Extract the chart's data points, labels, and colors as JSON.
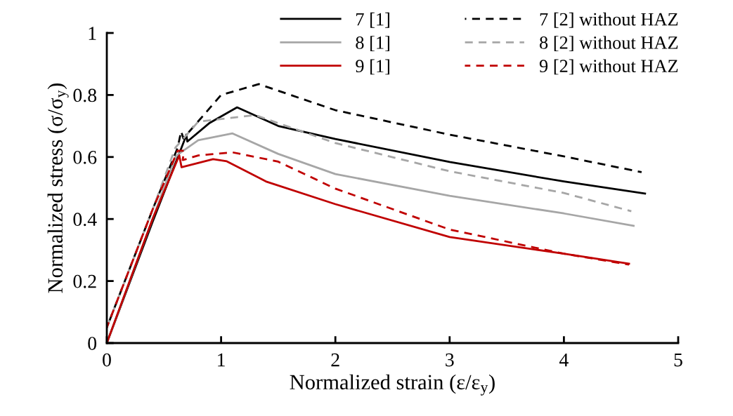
{
  "chart_data": {
    "type": "line",
    "xlabel": "Normalized strain (ε/ε$_{y}$)",
    "ylabel": "Normalized stress (σ/σ$_{y}$)",
    "xlim": [
      0,
      5
    ],
    "ylim": [
      0,
      1
    ],
    "xticks": [
      0,
      1,
      2,
      3,
      4,
      5
    ],
    "yticks": [
      0,
      0.2,
      0.4,
      0.6,
      0.8,
      1
    ],
    "grid": false,
    "legend": "top right",
    "series": [
      {
        "name": "7 [1]",
        "color": "#000000",
        "line_style": "solid",
        "x": [
          0,
          0.4,
          0.68,
          0.695,
          0.705,
          0.9,
          1.14,
          1.5,
          2,
          3,
          4,
          4.71
        ],
        "values": [
          0,
          0.39,
          0.655,
          0.672,
          0.65,
          0.71,
          0.76,
          0.7,
          0.658,
          0.584,
          0.521,
          0.482
        ]
      },
      {
        "name": "8 [1]",
        "color": "#a6a6a6",
        "line_style": "solid",
        "x": [
          0,
          0.4,
          0.6,
          0.63,
          0.8,
          1.1,
          1.5,
          2,
          3,
          4,
          4.61
        ],
        "values": [
          0,
          0.4,
          0.6,
          0.61,
          0.654,
          0.676,
          0.61,
          0.545,
          0.475,
          0.418,
          0.378
        ]
      },
      {
        "name": "9 [1]",
        "color": "#c00000",
        "line_style": "solid",
        "x": [
          0,
          0.4,
          0.634,
          0.654,
          0.93,
          1.05,
          1.4,
          2,
          3,
          4,
          4.57
        ],
        "values": [
          0,
          0.4,
          0.605,
          0.567,
          0.593,
          0.586,
          0.52,
          0.448,
          0.342,
          0.288,
          0.256
        ]
      },
      {
        "name": "7 [2] without HAZ",
        "color": "#000000",
        "line_style": "dashed",
        "x": [
          0,
          0.4,
          0.62,
          0.65,
          0.67,
          1,
          1.33,
          2,
          3,
          4,
          4.68
        ],
        "values": [
          0.05,
          0.43,
          0.63,
          0.683,
          0.66,
          0.8,
          0.835,
          0.751,
          0.672,
          0.602,
          0.551
        ]
      },
      {
        "name": "8 [2] without HAZ",
        "color": "#a6a6a6",
        "line_style": "dashed",
        "x": [
          0,
          0.4,
          0.6,
          0.8,
          1.3,
          2,
          3,
          4,
          4.59
        ],
        "values": [
          0.05,
          0.43,
          0.63,
          0.714,
          0.735,
          0.645,
          0.554,
          0.484,
          0.425
        ]
      },
      {
        "name": "9 [2] without HAZ",
        "color": "#c00000",
        "line_style": "dashed",
        "x": [
          0,
          0.4,
          0.62,
          0.675,
          0.664,
          0.8,
          1.1,
          1.5,
          2,
          3,
          4,
          4.57
        ],
        "values": [
          0.05,
          0.43,
          0.62,
          0.62,
          0.59,
          0.605,
          0.615,
          0.585,
          0.498,
          0.366,
          0.288,
          0.253
        ]
      }
    ]
  }
}
